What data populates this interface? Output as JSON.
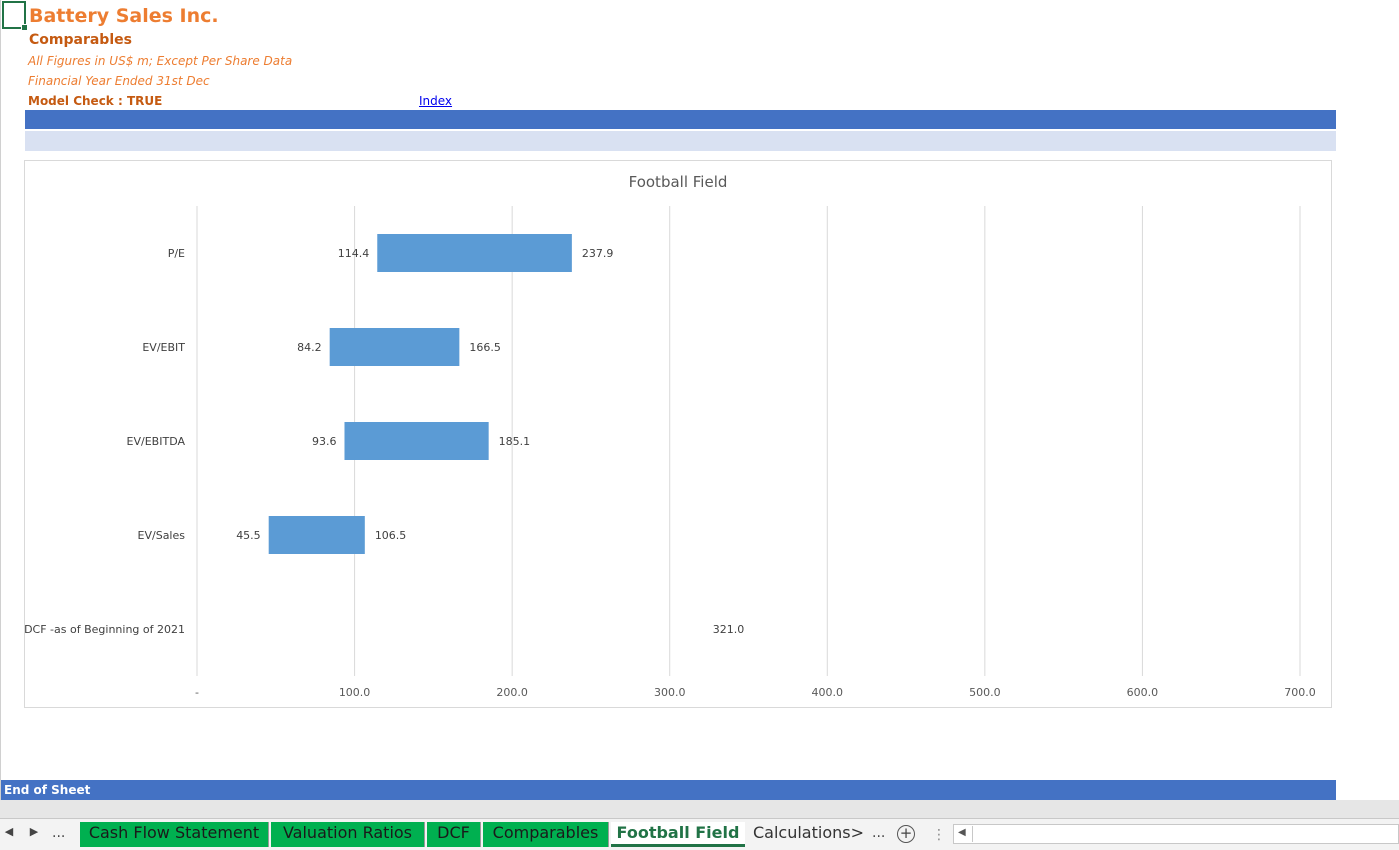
{
  "sheet": {
    "title": "Battery Sales Inc.",
    "subtitle": "Comparables",
    "note1": "All Figures in US$ m; Except Per Share Data",
    "note2": "Financial Year Ended 31st Dec",
    "model_check": "Model Check : TRUE",
    "index_link": "Index",
    "end_label": "End of Sheet"
  },
  "chart_data": {
    "type": "bar",
    "orientation": "horizontal-floating",
    "title": "Football Field",
    "categories": [
      "P/E",
      "EV/EBIT",
      "EV/EBITDA",
      "EV/Sales",
      "DCF -as of Beginning of 2021"
    ],
    "low": [
      114.4,
      84.2,
      93.6,
      45.5,
      321.0
    ],
    "high": [
      237.9,
      166.5,
      185.1,
      106.5,
      321.0
    ],
    "low_labels": [
      "114.4",
      "84.2",
      "93.6",
      "45.5",
      ""
    ],
    "high_labels": [
      "237.9",
      "166.5",
      "185.1",
      "106.5",
      "321.0"
    ],
    "xlim": [
      0,
      700
    ],
    "xticks": [
      0,
      100,
      200,
      300,
      400,
      500,
      600,
      700
    ],
    "xtick_labels": [
      "-",
      "100.0",
      "200.0",
      "300.0",
      "400.0",
      "500.0",
      "600.0",
      "700.0"
    ],
    "grid": true,
    "bar_color": "#5B9BD5"
  },
  "tabs": {
    "nav_dots": "...",
    "items": [
      "Cash Flow Statement",
      "Valuation Ratios",
      "DCF",
      "Comparables",
      "Football Field",
      "Calculations>"
    ],
    "active": "Football Field",
    "more": "...",
    "add_symbol": "+"
  },
  "colors": {
    "accent_orange": "#ED7D31",
    "dark_orange": "#C55A11",
    "band_blue": "#4472C4",
    "band_light": "#D9E1F2",
    "tab_green": "#00B050",
    "excel_green": "#217346"
  }
}
